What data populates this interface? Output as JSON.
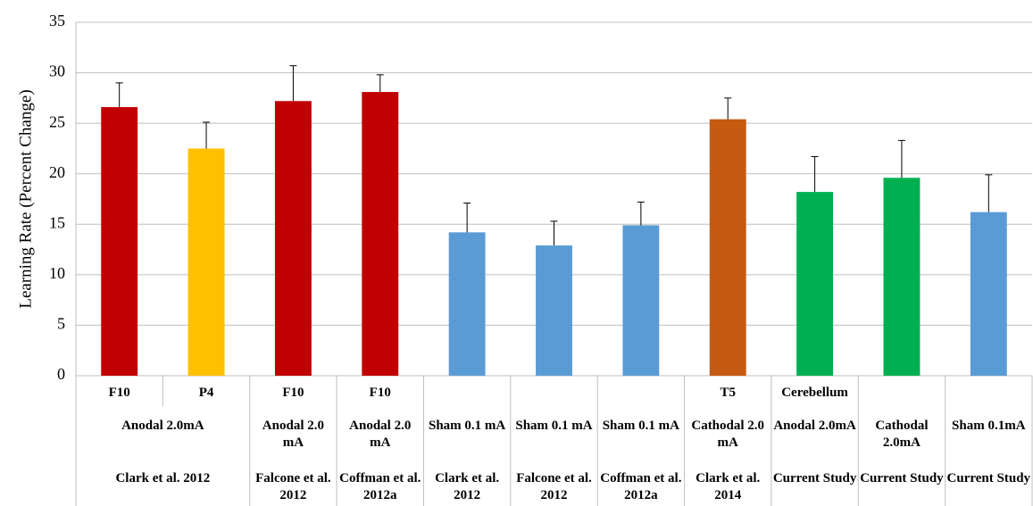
{
  "chart_data": {
    "type": "bar",
    "y_label": "Learning Rate (Percent Change)",
    "categories": [
      "F10",
      "P4",
      "F10",
      "F10",
      null,
      null,
      null,
      "T5",
      "Cerebellum",
      null,
      null
    ],
    "conditions": [
      "Anodal 2.0mA",
      null,
      "Anodal 2.0 mA",
      "Anodal 2.0 mA",
      "Sham 0.1 mA",
      "Sham 0.1 mA",
      "Sham 0.1 mA",
      "Cathodal 2.0 mA",
      "Anodal 2.0mA",
      "Cathodal 2.0mA",
      "Sham 0.1mA"
    ],
    "studies": [
      "Clark et al. 2012",
      null,
      "Falcone et al. 2012",
      "Coffman et al. 2012a",
      "Clark et al. 2012",
      "Falcone et al. 2012",
      "Coffman et al. 2012a",
      "Clark et al. 2014",
      "Current Study",
      "Current Study",
      "Current Study"
    ],
    "values": [
      26.6,
      22.5,
      27.2,
      28.1,
      14.2,
      12.9,
      14.9,
      25.4,
      18.2,
      19.6,
      16.2
    ],
    "errors": [
      2.4,
      2.6,
      3.5,
      1.7,
      2.9,
      2.4,
      2.3,
      2.1,
      3.5,
      3.7,
      3.7
    ],
    "colors": [
      "#c00000",
      "#ffc000",
      "#c00000",
      "#c00000",
      "#5b9bd5",
      "#5b9bd5",
      "#5b9bd5",
      "#c55a11",
      "#00b050",
      "#00b050",
      "#5b9bd5"
    ],
    "ylim": [
      0,
      35
    ],
    "yticks": [
      0,
      5,
      10,
      15,
      20,
      25,
      30,
      35
    ],
    "grid": true
  }
}
